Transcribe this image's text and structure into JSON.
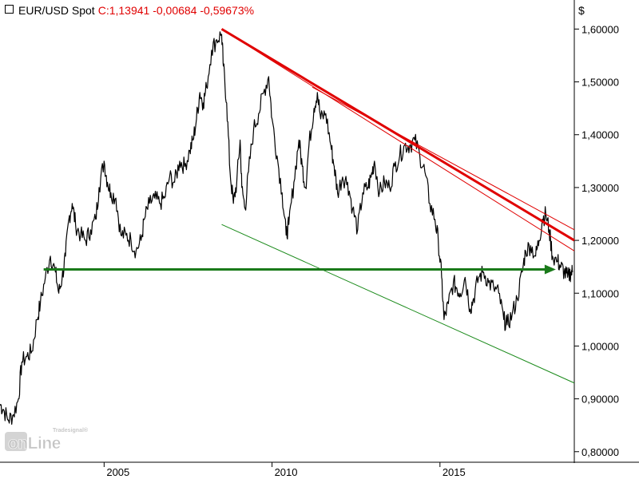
{
  "header": {
    "ticker": "EUR/USD Spot",
    "quote": "C:1,13941 -0,00684 -0,59673%"
  },
  "axis": {
    "unit": "$"
  },
  "logo": {
    "text_main": "onLine",
    "text_small": "Tradesignal®"
  },
  "colors": {
    "price": "#000000",
    "resistance": "#e00000",
    "support": "#1a8a1a",
    "arrow": "#1a7a1a",
    "grid_axis": "#000000"
  },
  "chart_data": {
    "type": "line",
    "title": "EUR/USD Spot",
    "xlabel": "",
    "ylabel": "$",
    "xlim": [
      2001.9,
      2019.0
    ],
    "ylim": [
      0.78,
      1.655
    ],
    "y_ticks": [
      "0,80000",
      "0,90000",
      "1,00000",
      "1,10000",
      "1,20000",
      "1,30000",
      "1,40000",
      "1,50000",
      "1,60000"
    ],
    "y_tick_values": [
      0.8,
      0.9,
      1.0,
      1.1,
      1.2,
      1.3,
      1.4,
      1.5,
      1.6
    ],
    "x_ticks": [
      "2005",
      "2010",
      "2015"
    ],
    "x_tick_values": [
      2005,
      2010,
      2015
    ],
    "grid": false,
    "series": [
      {
        "values": [
          [
            2001.9,
            0.89
          ],
          [
            2002.0,
            0.88
          ],
          [
            2002.15,
            0.86
          ],
          [
            2002.3,
            0.87
          ],
          [
            2002.45,
            0.9
          ],
          [
            2002.55,
            0.97
          ],
          [
            2002.7,
            0.98
          ],
          [
            2002.85,
            0.99
          ],
          [
            2003.0,
            1.05
          ],
          [
            2003.1,
            1.08
          ],
          [
            2003.25,
            1.13
          ],
          [
            2003.4,
            1.17
          ],
          [
            2003.55,
            1.14
          ],
          [
            2003.65,
            1.1
          ],
          [
            2003.75,
            1.13
          ],
          [
            2003.85,
            1.17
          ],
          [
            2003.95,
            1.24
          ],
          [
            2004.05,
            1.27
          ],
          [
            2004.15,
            1.23
          ],
          [
            2004.3,
            1.21
          ],
          [
            2004.45,
            1.2
          ],
          [
            2004.6,
            1.22
          ],
          [
            2004.75,
            1.24
          ],
          [
            2004.85,
            1.3
          ],
          [
            2005.0,
            1.35
          ],
          [
            2005.1,
            1.31
          ],
          [
            2005.2,
            1.29
          ],
          [
            2005.35,
            1.28
          ],
          [
            2005.5,
            1.21
          ],
          [
            2005.65,
            1.21
          ],
          [
            2005.8,
            1.2
          ],
          [
            2005.95,
            1.18
          ],
          [
            2006.1,
            1.2
          ],
          [
            2006.2,
            1.24
          ],
          [
            2006.35,
            1.27
          ],
          [
            2006.5,
            1.28
          ],
          [
            2006.65,
            1.27
          ],
          [
            2006.8,
            1.28
          ],
          [
            2006.95,
            1.32
          ],
          [
            2007.1,
            1.31
          ],
          [
            2007.25,
            1.35
          ],
          [
            2007.4,
            1.34
          ],
          [
            2007.55,
            1.37
          ],
          [
            2007.65,
            1.39
          ],
          [
            2007.75,
            1.43
          ],
          [
            2007.85,
            1.48
          ],
          [
            2007.95,
            1.46
          ],
          [
            2008.05,
            1.49
          ],
          [
            2008.2,
            1.56
          ],
          [
            2008.35,
            1.58
          ],
          [
            2008.5,
            1.59
          ],
          [
            2008.55,
            1.53
          ],
          [
            2008.65,
            1.46
          ],
          [
            2008.75,
            1.33
          ],
          [
            2008.85,
            1.27
          ],
          [
            2008.95,
            1.31
          ],
          [
            2009.05,
            1.39
          ],
          [
            2009.1,
            1.3
          ],
          [
            2009.2,
            1.26
          ],
          [
            2009.3,
            1.33
          ],
          [
            2009.45,
            1.41
          ],
          [
            2009.6,
            1.44
          ],
          [
            2009.75,
            1.48
          ],
          [
            2009.9,
            1.51
          ],
          [
            2010.0,
            1.43
          ],
          [
            2010.15,
            1.36
          ],
          [
            2010.3,
            1.29
          ],
          [
            2010.42,
            1.21
          ],
          [
            2010.5,
            1.23
          ],
          [
            2010.65,
            1.31
          ],
          [
            2010.8,
            1.39
          ],
          [
            2010.9,
            1.34
          ],
          [
            2011.0,
            1.3
          ],
          [
            2011.1,
            1.38
          ],
          [
            2011.25,
            1.45
          ],
          [
            2011.35,
            1.48
          ],
          [
            2011.45,
            1.43
          ],
          [
            2011.6,
            1.44
          ],
          [
            2011.75,
            1.38
          ],
          [
            2011.85,
            1.34
          ],
          [
            2011.95,
            1.29
          ],
          [
            2012.1,
            1.32
          ],
          [
            2012.25,
            1.31
          ],
          [
            2012.4,
            1.26
          ],
          [
            2012.55,
            1.22
          ],
          [
            2012.7,
            1.29
          ],
          [
            2012.85,
            1.3
          ],
          [
            2012.95,
            1.32
          ],
          [
            2013.05,
            1.35
          ],
          [
            2013.2,
            1.29
          ],
          [
            2013.35,
            1.31
          ],
          [
            2013.5,
            1.3
          ],
          [
            2013.65,
            1.34
          ],
          [
            2013.8,
            1.36
          ],
          [
            2013.95,
            1.38
          ],
          [
            2014.1,
            1.38
          ],
          [
            2014.25,
            1.39
          ],
          [
            2014.4,
            1.36
          ],
          [
            2014.55,
            1.33
          ],
          [
            2014.7,
            1.27
          ],
          [
            2014.85,
            1.24
          ],
          [
            2014.95,
            1.2
          ],
          [
            2015.05,
            1.13
          ],
          [
            2015.12,
            1.05
          ],
          [
            2015.25,
            1.08
          ],
          [
            2015.4,
            1.12
          ],
          [
            2015.5,
            1.11
          ],
          [
            2015.6,
            1.1
          ],
          [
            2015.75,
            1.13
          ],
          [
            2015.9,
            1.07
          ],
          [
            2016.0,
            1.09
          ],
          [
            2016.15,
            1.13
          ],
          [
            2016.3,
            1.14
          ],
          [
            2016.45,
            1.12
          ],
          [
            2016.6,
            1.11
          ],
          [
            2016.75,
            1.1
          ],
          [
            2016.9,
            1.05
          ],
          [
            2017.0,
            1.04
          ],
          [
            2017.15,
            1.06
          ],
          [
            2017.3,
            1.09
          ],
          [
            2017.45,
            1.14
          ],
          [
            2017.55,
            1.18
          ],
          [
            2017.7,
            1.19
          ],
          [
            2017.85,
            1.17
          ],
          [
            2017.95,
            1.2
          ],
          [
            2018.05,
            1.24
          ],
          [
            2018.15,
            1.25
          ],
          [
            2018.25,
            1.22
          ],
          [
            2018.35,
            1.17
          ],
          [
            2018.5,
            1.16
          ],
          [
            2018.6,
            1.15
          ],
          [
            2018.7,
            1.14
          ],
          [
            2018.8,
            1.13
          ],
          [
            2018.9,
            1.14
          ],
          [
            2018.95,
            1.14
          ]
        ]
      }
    ],
    "annotations": [
      {
        "kind": "trendline",
        "role": "resistance-main",
        "color": "#e00000",
        "from": [
          2008.5,
          1.6
        ],
        "to": [
          2019.0,
          1.2
        ]
      },
      {
        "kind": "trendline",
        "role": "resistance-upper",
        "color": "#e00000",
        "from": [
          2011.2,
          1.49
        ],
        "to": [
          2019.0,
          1.22
        ]
      },
      {
        "kind": "trendline",
        "role": "resistance-lower",
        "color": "#e00000",
        "from": [
          2008.5,
          1.6
        ],
        "to": [
          2019.0,
          1.18
        ]
      },
      {
        "kind": "trendline",
        "role": "support-channel",
        "color": "#1a8a1a",
        "from": [
          2008.5,
          1.23
        ],
        "to": [
          2019.0,
          0.93
        ]
      },
      {
        "kind": "arrow",
        "role": "horizontal-level",
        "color": "#1a7a1a",
        "from": [
          2003.2,
          1.145
        ],
        "to": [
          2018.45,
          1.145
        ]
      }
    ]
  }
}
